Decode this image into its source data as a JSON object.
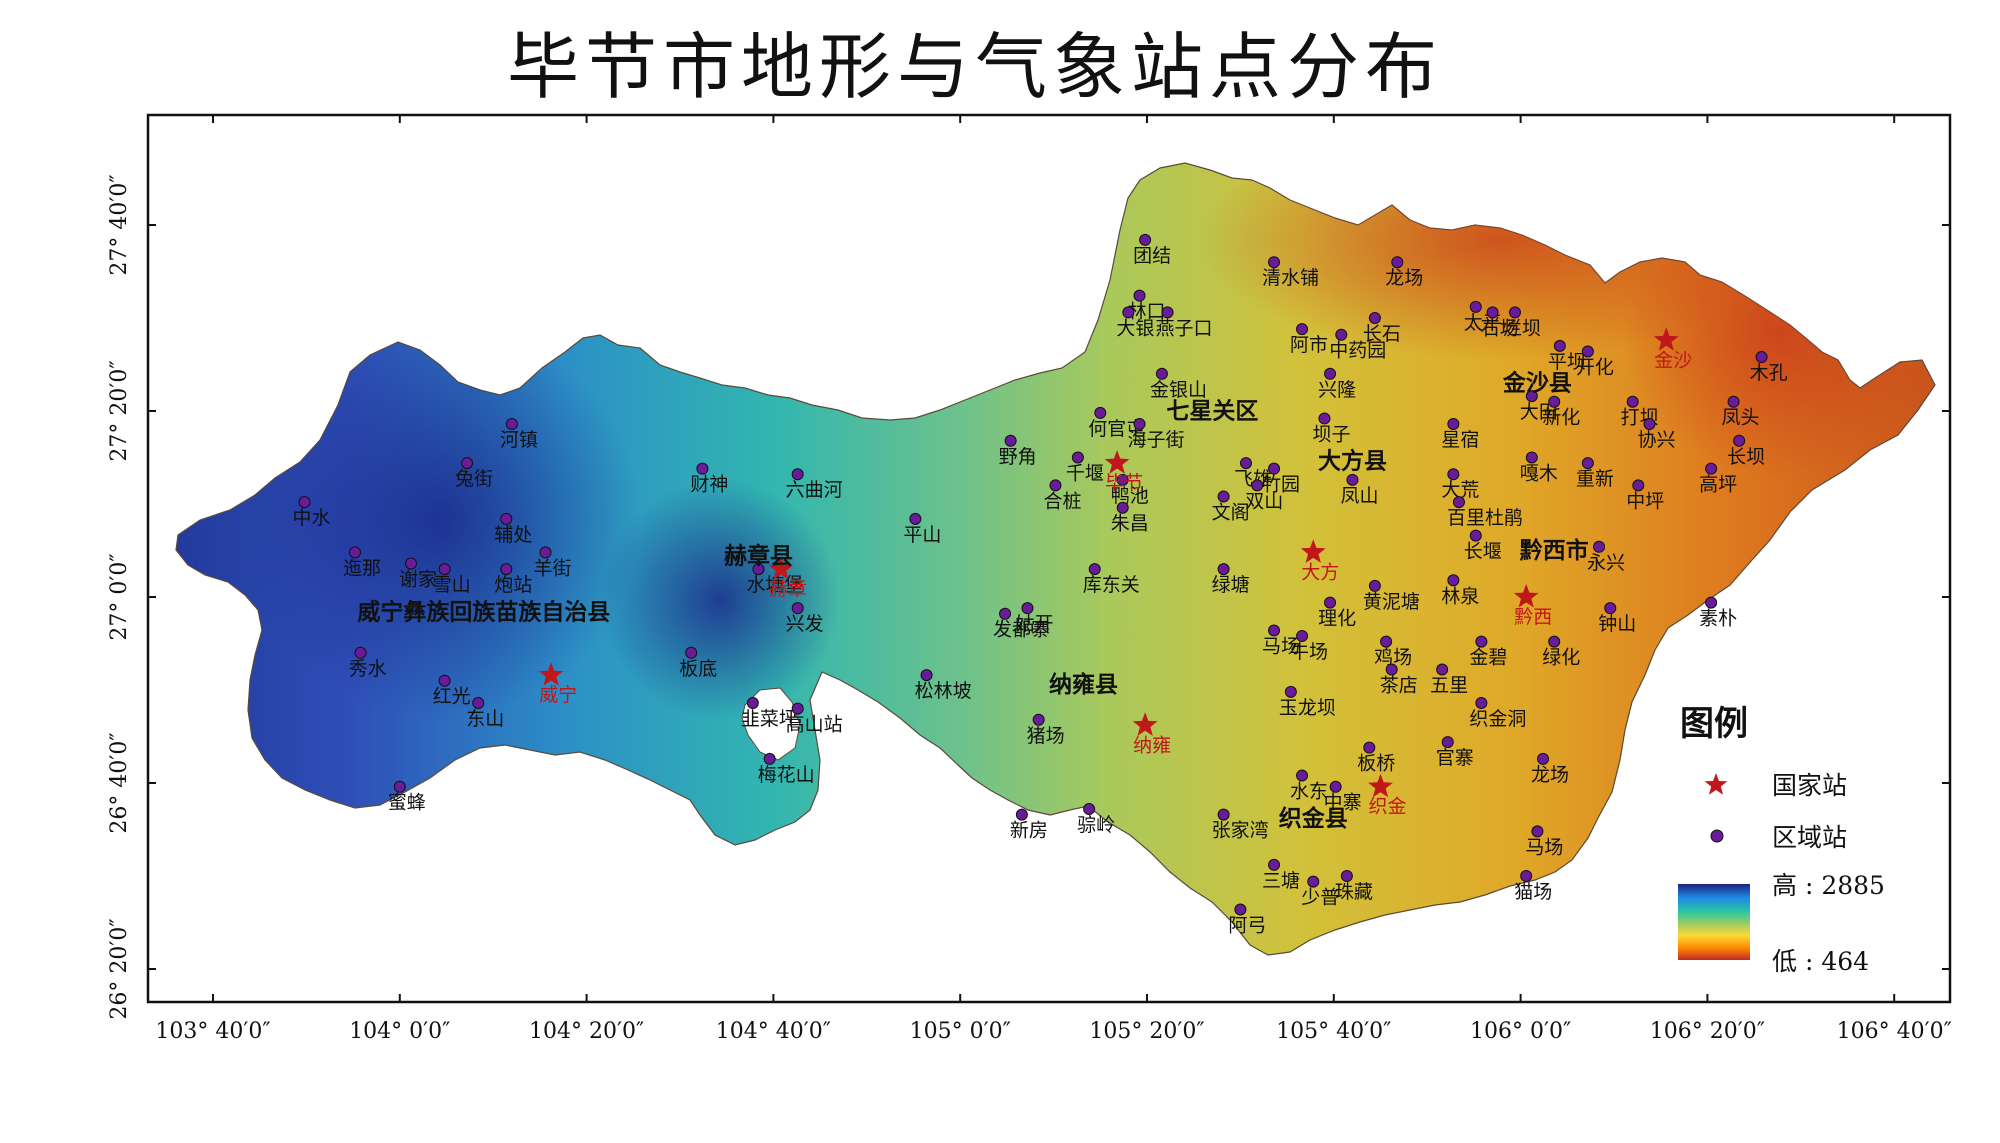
{
  "title": "毕节市地形与气象站点分布",
  "axes": {
    "x_ticks": [
      "103° 40′0″",
      "104° 0′0″",
      "104° 20′0″",
      "104° 40′0″",
      "105° 0′0″",
      "105° 20′0″",
      "105° 40′0″",
      "106° 0′0″",
      "106° 20′0″",
      "106° 40′0″"
    ],
    "y_ticks": [
      "27° 40′0″",
      "27° 20′0″",
      "27° 0′0″",
      "26° 40′0″",
      "26° 20′0″"
    ]
  },
  "counties": [
    {
      "name": "七星关区",
      "lon": 105.45,
      "lat": 27.32
    },
    {
      "name": "大方县",
      "lon": 105.7,
      "lat": 27.23
    },
    {
      "name": "金沙县",
      "lon": 106.03,
      "lat": 27.37
    },
    {
      "name": "黔西市",
      "lon": 106.06,
      "lat": 27.07
    },
    {
      "name": "赫章县",
      "lon": 104.64,
      "lat": 27.06
    },
    {
      "name": "威宁彝族回族苗族自治县",
      "lon": 104.15,
      "lat": 26.96
    },
    {
      "name": "纳雍县",
      "lon": 105.22,
      "lat": 26.83
    },
    {
      "name": "织金县",
      "lon": 105.63,
      "lat": 26.59
    }
  ],
  "national_stations": [
    {
      "name": "毕节",
      "lon": 105.28,
      "lat": 27.24
    },
    {
      "name": "大方",
      "lon": 105.63,
      "lat": 27.08
    },
    {
      "name": "金沙",
      "lon": 106.26,
      "lat": 27.46
    },
    {
      "name": "黔西",
      "lon": 106.01,
      "lat": 27.0
    },
    {
      "name": "赫章",
      "lon": 104.68,
      "lat": 27.05
    },
    {
      "name": "威宁",
      "lon": 104.27,
      "lat": 26.86
    },
    {
      "name": "纳雍",
      "lon": 105.33,
      "lat": 26.77
    },
    {
      "name": "织金",
      "lon": 105.75,
      "lat": 26.66
    }
  ],
  "regional_stations": [
    {
      "name": "团结",
      "lon": 105.33,
      "lat": 27.64
    },
    {
      "name": "林口",
      "lon": 105.32,
      "lat": 27.54
    },
    {
      "name": "大银",
      "lon": 105.3,
      "lat": 27.51
    },
    {
      "name": "燕子口",
      "lon": 105.37,
      "lat": 27.51
    },
    {
      "name": "清水铺",
      "lon": 105.56,
      "lat": 27.6
    },
    {
      "name": "龙场",
      "lon": 105.78,
      "lat": 27.6
    },
    {
      "name": "阿市",
      "lon": 105.61,
      "lat": 27.48
    },
    {
      "name": "中药园",
      "lon": 105.68,
      "lat": 27.47
    },
    {
      "name": "长石",
      "lon": 105.74,
      "lat": 27.5
    },
    {
      "name": "太平",
      "lon": 105.92,
      "lat": 27.52
    },
    {
      "name": "石场",
      "lon": 105.95,
      "lat": 27.51
    },
    {
      "name": "烂坝",
      "lon": 105.99,
      "lat": 27.51
    },
    {
      "name": "平坝",
      "lon": 106.07,
      "lat": 27.45
    },
    {
      "name": "开化",
      "lon": 106.12,
      "lat": 27.44
    },
    {
      "name": "木孔",
      "lon": 106.43,
      "lat": 27.43
    },
    {
      "name": "金银山",
      "lon": 105.36,
      "lat": 27.4
    },
    {
      "name": "兴隆",
      "lon": 105.66,
      "lat": 27.4
    },
    {
      "name": "大田",
      "lon": 106.02,
      "lat": 27.36
    },
    {
      "name": "新化",
      "lon": 106.06,
      "lat": 27.35
    },
    {
      "name": "打坝",
      "lon": 106.2,
      "lat": 27.35
    },
    {
      "name": "凤头",
      "lon": 106.38,
      "lat": 27.35
    },
    {
      "name": "何官屯",
      "lon": 105.25,
      "lat": 27.33
    },
    {
      "name": "海子街",
      "lon": 105.32,
      "lat": 27.31
    },
    {
      "name": "坝子",
      "lon": 105.65,
      "lat": 27.32
    },
    {
      "name": "星宿",
      "lon": 105.88,
      "lat": 27.31
    },
    {
      "name": "协兴",
      "lon": 106.23,
      "lat": 27.31
    },
    {
      "name": "长坝",
      "lon": 106.39,
      "lat": 27.28
    },
    {
      "name": "野角",
      "lon": 105.09,
      "lat": 27.28
    },
    {
      "name": "千堰",
      "lon": 105.21,
      "lat": 27.25
    },
    {
      "name": "飞雄",
      "lon": 105.51,
      "lat": 27.24
    },
    {
      "name": "竹园",
      "lon": 105.56,
      "lat": 27.23
    },
    {
      "name": "嘎木",
      "lon": 106.02,
      "lat": 27.25
    },
    {
      "name": "重新",
      "lon": 106.12,
      "lat": 27.24
    },
    {
      "name": "高坪",
      "lon": 106.34,
      "lat": 27.23
    },
    {
      "name": "合桩",
      "lon": 105.17,
      "lat": 27.2
    },
    {
      "name": "鸭池",
      "lon": 105.29,
      "lat": 27.21
    },
    {
      "name": "双山",
      "lon": 105.53,
      "lat": 27.2
    },
    {
      "name": "凤山",
      "lon": 105.7,
      "lat": 27.21
    },
    {
      "name": "大荒",
      "lon": 105.88,
      "lat": 27.22
    },
    {
      "name": "中坪",
      "lon": 106.21,
      "lat": 27.2
    },
    {
      "name": "文阁",
      "lon": 105.47,
      "lat": 27.18
    },
    {
      "name": "百里杜鹃",
      "lon": 105.89,
      "lat": 27.17
    },
    {
      "name": "朱昌",
      "lon": 105.29,
      "lat": 27.16
    },
    {
      "name": "长堰",
      "lon": 105.92,
      "lat": 27.11
    },
    {
      "name": "永兴",
      "lon": 106.14,
      "lat": 27.09
    },
    {
      "name": "库东关",
      "lon": 105.24,
      "lat": 27.05
    },
    {
      "name": "绿塘",
      "lon": 105.47,
      "lat": 27.05
    },
    {
      "name": "黄泥塘",
      "lon": 105.74,
      "lat": 27.02
    },
    {
      "name": "林泉",
      "lon": 105.88,
      "lat": 27.03
    },
    {
      "name": "理化",
      "lon": 105.66,
      "lat": 26.99
    },
    {
      "name": "钟山",
      "lon": 106.16,
      "lat": 26.98
    },
    {
      "name": "素朴",
      "lon": 106.34,
      "lat": 26.99
    },
    {
      "name": "六曲河",
      "lon": 104.71,
      "lat": 27.22
    },
    {
      "name": "平山",
      "lon": 104.92,
      "lat": 27.14
    },
    {
      "name": "发都寨",
      "lon": 105.08,
      "lat": 26.97
    },
    {
      "name": "姑开",
      "lon": 105.12,
      "lat": 26.98
    },
    {
      "name": "马场",
      "lon": 105.56,
      "lat": 26.94
    },
    {
      "name": "牛场",
      "lon": 105.61,
      "lat": 26.93
    },
    {
      "name": "鸡场",
      "lon": 105.76,
      "lat": 26.92
    },
    {
      "name": "金碧",
      "lon": 105.93,
      "lat": 26.92
    },
    {
      "name": "绿化",
      "lon": 106.06,
      "lat": 26.92
    },
    {
      "name": "茶店",
      "lon": 105.77,
      "lat": 26.87
    },
    {
      "name": "五里",
      "lon": 105.86,
      "lat": 26.87
    },
    {
      "name": "玉龙坝",
      "lon": 105.59,
      "lat": 26.83
    },
    {
      "name": "织金洞",
      "lon": 105.93,
      "lat": 26.81
    },
    {
      "name": "猪场",
      "lon": 105.14,
      "lat": 26.78
    },
    {
      "name": "板桥",
      "lon": 105.73,
      "lat": 26.73
    },
    {
      "name": "官寨",
      "lon": 105.87,
      "lat": 26.74
    },
    {
      "name": "龙场",
      "lon": 106.04,
      "lat": 26.71
    },
    {
      "name": "水东",
      "lon": 105.61,
      "lat": 26.68
    },
    {
      "name": "中寨",
      "lon": 105.67,
      "lat": 26.66
    },
    {
      "name": "骔岭",
      "lon": 105.23,
      "lat": 26.62
    },
    {
      "name": "张家湾",
      "lon": 105.47,
      "lat": 26.61
    },
    {
      "name": "新房",
      "lon": 105.11,
      "lat": 26.61
    },
    {
      "name": "马场",
      "lon": 106.03,
      "lat": 26.58
    },
    {
      "name": "三塘",
      "lon": 105.56,
      "lat": 26.52
    },
    {
      "name": "少普",
      "lon": 105.63,
      "lat": 26.49
    },
    {
      "name": "珠藏",
      "lon": 105.69,
      "lat": 26.5
    },
    {
      "name": "猫场",
      "lon": 106.01,
      "lat": 26.5
    },
    {
      "name": "阿弓",
      "lon": 105.5,
      "lat": 26.44
    },
    {
      "name": "河镇",
      "lon": 104.2,
      "lat": 27.31
    },
    {
      "name": "兔街",
      "lon": 104.12,
      "lat": 27.24
    },
    {
      "name": "辅处",
      "lon": 104.19,
      "lat": 27.14
    },
    {
      "name": "财神",
      "lon": 104.54,
      "lat": 27.23
    },
    {
      "name": "中水",
      "lon": 103.83,
      "lat": 27.17
    },
    {
      "name": "迤那",
      "lon": 103.92,
      "lat": 27.08
    },
    {
      "name": "谢家",
      "lon": 104.02,
      "lat": 27.06
    },
    {
      "name": "雪山",
      "lon": 104.08,
      "lat": 27.05
    },
    {
      "name": "炮站",
      "lon": 104.19,
      "lat": 27.05
    },
    {
      "name": "羊街",
      "lon": 104.26,
      "lat": 27.08
    },
    {
      "name": "水塘堡",
      "lon": 104.64,
      "lat": 27.05
    },
    {
      "name": "兴发",
      "lon": 104.71,
      "lat": 26.98
    },
    {
      "name": "板底",
      "lon": 104.52,
      "lat": 26.9
    },
    {
      "name": "秀水",
      "lon": 103.93,
      "lat": 26.9
    },
    {
      "name": "红光",
      "lon": 104.08,
      "lat": 26.85
    },
    {
      "name": "东山",
      "lon": 104.14,
      "lat": 26.81
    },
    {
      "name": "韭菜坪",
      "lon": 104.63,
      "lat": 26.81
    },
    {
      "name": "高山站",
      "lon": 104.71,
      "lat": 26.8
    },
    {
      "name": "松林坡",
      "lon": 104.94,
      "lat": 26.86
    },
    {
      "name": "蜜蜂",
      "lon": 104.0,
      "lat": 26.66
    },
    {
      "name": "梅花山",
      "lon": 104.66,
      "lat": 26.71
    }
  ],
  "legend": {
    "title": "图例",
    "national_label": "国家站",
    "regional_label": "区域站",
    "high_label": "高 : 2885",
    "low_label": "低 : 464",
    "national_color": "#c0181a",
    "regional_color": "#6a1b9a",
    "ramp": [
      "#1a237e",
      "#1e88e5",
      "#26c6a4",
      "#9ccc65",
      "#fdd835",
      "#fb8c00",
      "#c62828"
    ]
  }
}
